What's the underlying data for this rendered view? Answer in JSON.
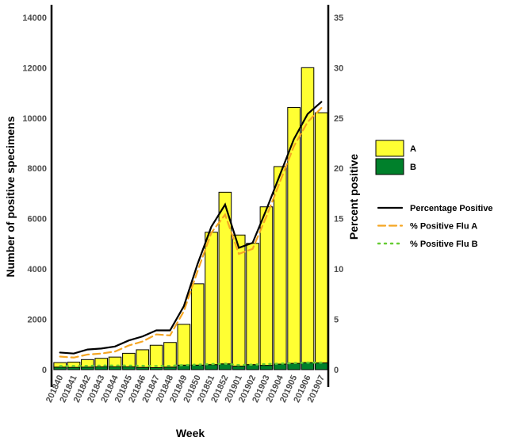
{
  "chart_data": {
    "type": "bar",
    "categories": [
      "201840",
      "201841",
      "201842",
      "201843",
      "201844",
      "201845",
      "201846",
      "201847",
      "201848",
      "201849",
      "201850",
      "201851",
      "201852",
      "201901",
      "201902",
      "201903",
      "201904",
      "201905",
      "201906",
      "201907"
    ],
    "xlabel": "Week",
    "ylabel": "Number of positive specimens",
    "ylabel_right": "Percent positive",
    "ylim": [
      0,
      14500
    ],
    "ylim_right": [
      0,
      36.25
    ],
    "yticks": [
      0,
      2000,
      4000,
      6000,
      8000,
      10000,
      12000,
      14000
    ],
    "yticks_right": [
      0,
      5,
      10,
      15,
      20,
      25,
      30,
      35
    ],
    "bar_series": [
      {
        "name": "A",
        "color": "#ffff33",
        "values": [
          180,
          210,
          300,
          340,
          390,
          540,
          700,
          890,
          980,
          1620,
          3230,
          5260,
          6820,
          5210,
          4820,
          6300,
          7850,
          10170,
          11720,
          9940
        ]
      },
      {
        "name": "B",
        "color": "#00802b",
        "values": [
          100,
          90,
          100,
          110,
          110,
          110,
          90,
          80,
          100,
          180,
          180,
          200,
          230,
          140,
          200,
          170,
          220,
          250,
          280,
          270
        ]
      }
    ],
    "line_series": [
      {
        "name": "Percentage Positive",
        "color": "#000000",
        "style": "solid",
        "values": [
          1.7,
          1.6,
          2.0,
          2.1,
          2.3,
          2.9,
          3.3,
          3.9,
          3.9,
          6.3,
          10.5,
          14.2,
          16.4,
          12.1,
          12.6,
          15.9,
          19.4,
          22.9,
          25.4,
          26.6
        ]
      },
      {
        "name": "% Positive Flu A",
        "color": "#f5a623",
        "style": "dashed",
        "values": [
          1.3,
          1.2,
          1.5,
          1.6,
          1.8,
          2.4,
          2.8,
          3.5,
          3.4,
          5.8,
          9.8,
          13.6,
          15.4,
          11.5,
          12.0,
          15.2,
          18.7,
          22.2,
          24.6,
          26.0
        ]
      },
      {
        "name": "% Positive Flu B",
        "color": "#66cc33",
        "style": "dotted",
        "values": [
          0.35,
          0.35,
          0.38,
          0.4,
          0.4,
          0.4,
          0.38,
          0.35,
          0.38,
          0.45,
          0.5,
          0.55,
          0.6,
          0.45,
          0.5,
          0.55,
          0.6,
          0.65,
          0.7,
          0.7
        ]
      }
    ],
    "legend_placement": "right",
    "grid": false
  }
}
